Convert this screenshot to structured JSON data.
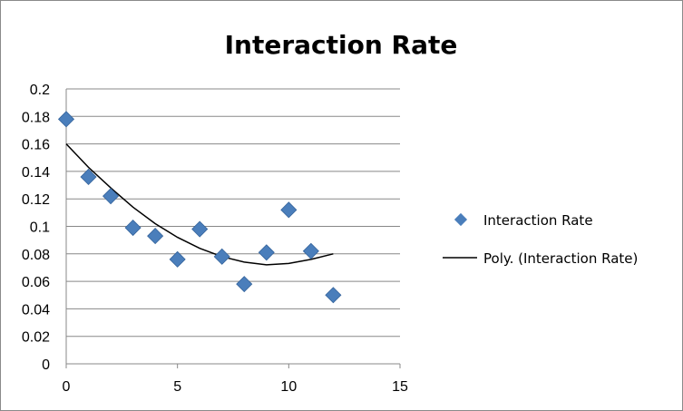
{
  "chart_data": {
    "type": "scatter",
    "title": "Interaction Rate",
    "xlabel": "",
    "ylabel": "",
    "xlim": [
      0,
      15
    ],
    "ylim": [
      0,
      0.2
    ],
    "x_ticks": [
      "0",
      "5",
      "10",
      "15"
    ],
    "y_ticks": [
      "0",
      "0.02",
      "0.04",
      "0.06",
      "0.08",
      "0.1",
      "0.12",
      "0.14",
      "0.16",
      "0.18",
      "0.2"
    ],
    "grid": "horizontal",
    "legend_position": "right",
    "series": [
      {
        "name": "Interaction Rate",
        "kind": "scatter",
        "marker": "diamond",
        "color": "#4a7ebb",
        "points": [
          {
            "x": 0,
            "y": 0.178
          },
          {
            "x": 1,
            "y": 0.136
          },
          {
            "x": 2,
            "y": 0.122
          },
          {
            "x": 3,
            "y": 0.099
          },
          {
            "x": 4,
            "y": 0.093
          },
          {
            "x": 5,
            "y": 0.076
          },
          {
            "x": 6,
            "y": 0.098
          },
          {
            "x": 7,
            "y": 0.078
          },
          {
            "x": 8,
            "y": 0.058
          },
          {
            "x": 9,
            "y": 0.081
          },
          {
            "x": 10,
            "y": 0.112
          },
          {
            "x": 11,
            "y": 0.082
          },
          {
            "x": 12,
            "y": 0.05
          }
        ]
      },
      {
        "name": "Poly. (Interaction Rate)",
        "kind": "trendline",
        "color": "#000000",
        "points": [
          {
            "x": 0,
            "y": 0.16
          },
          {
            "x": 1,
            "y": 0.143
          },
          {
            "x": 2,
            "y": 0.128
          },
          {
            "x": 3,
            "y": 0.114
          },
          {
            "x": 4,
            "y": 0.102
          },
          {
            "x": 5,
            "y": 0.092
          },
          {
            "x": 6,
            "y": 0.084
          },
          {
            "x": 7,
            "y": 0.078
          },
          {
            "x": 8,
            "y": 0.074
          },
          {
            "x": 9,
            "y": 0.072
          },
          {
            "x": 10,
            "y": 0.073
          },
          {
            "x": 11,
            "y": 0.076
          },
          {
            "x": 12,
            "y": 0.08
          }
        ]
      }
    ]
  }
}
